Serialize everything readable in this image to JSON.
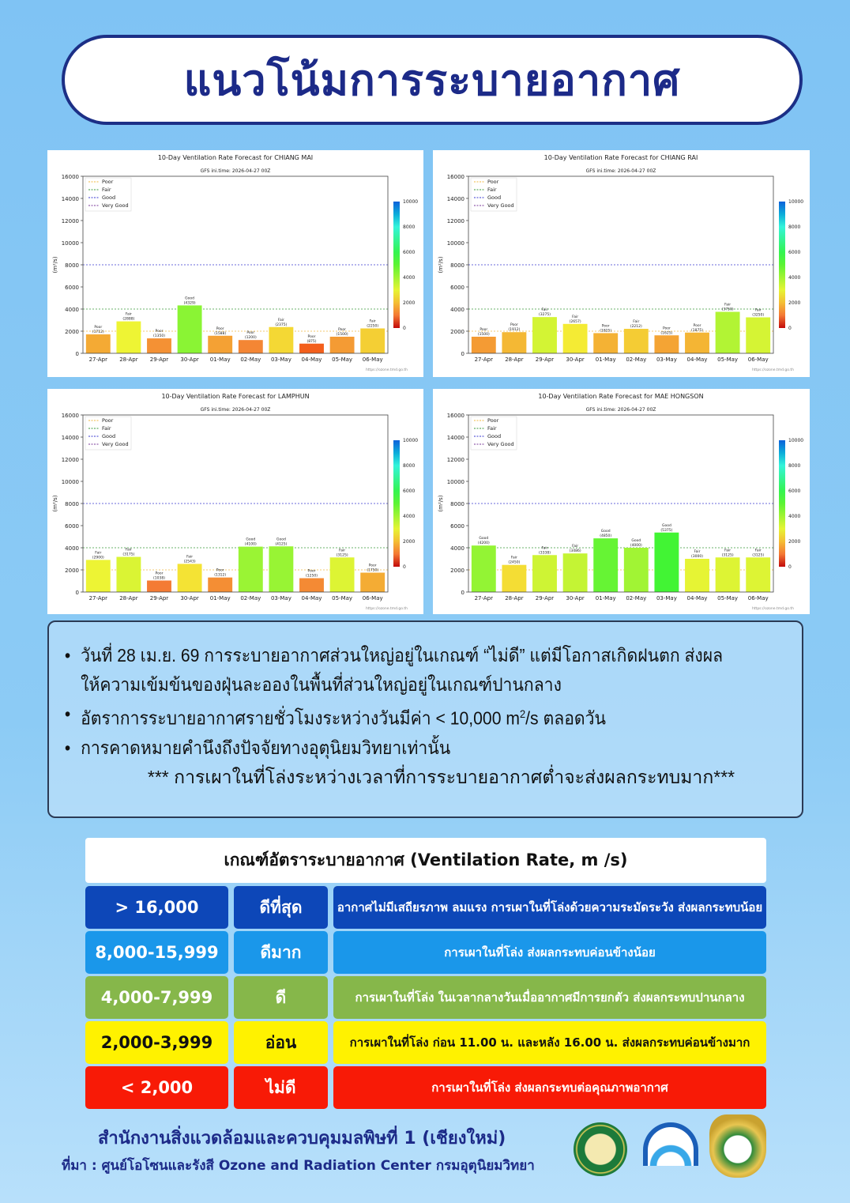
{
  "header": {
    "title": "แนวโน้มการระบายอากาศ"
  },
  "chart_data": [
    {
      "type": "bar",
      "title": "10-Day Ventilation Rate Forecast for CHIANG MAI",
      "subtitle": "GFS ini.time: 2026-04-27 00Z",
      "ylabel": "(m²/s)",
      "ylim": [
        0,
        16000
      ],
      "yticks": [
        0,
        2000,
        4000,
        6000,
        8000,
        10000,
        12000,
        14000,
        16000
      ],
      "categories": [
        "27-Apr",
        "28-Apr",
        "29-Apr",
        "30-Apr",
        "01-May",
        "02-May",
        "03-May",
        "04-May",
        "05-May",
        "06-May"
      ],
      "values": [
        1712,
        2888,
        1350,
        4329,
        1588,
        1200,
        2375,
        875,
        1500,
        2250
      ],
      "labels": [
        "Poor",
        "Fair",
        "Poor",
        "Good",
        "Poor",
        "Poor",
        "Fair",
        "Poor",
        "Poor",
        "Fair"
      ],
      "credit": "https://ozone.tmd.go.th"
    },
    {
      "type": "bar",
      "title": "10-Day Ventilation Rate Forecast for CHIANG RAI",
      "subtitle": "GFS ini.time: 2026-04-27 00Z",
      "ylabel": "(m²/s)",
      "ylim": [
        0,
        16000
      ],
      "yticks": [
        0,
        2000,
        4000,
        6000,
        8000,
        10000,
        12000,
        14000,
        16000
      ],
      "categories": [
        "27-Apr",
        "28-Apr",
        "29-Apr",
        "30-Apr",
        "01-May",
        "02-May",
        "03-May",
        "04-May",
        "05-May",
        "06-May"
      ],
      "values": [
        1500,
        1912,
        3275,
        2657,
        1825,
        2212,
        1625,
        1875,
        3750,
        3250
      ],
      "labels": [
        "Poor",
        "Poor",
        "Fair",
        "Fair",
        "Poor",
        "Fair",
        "Poor",
        "Poor",
        "Fair",
        "Fair"
      ],
      "credit": "https://ozone.tmd.go.th"
    },
    {
      "type": "bar",
      "title": "10-Day Ventilation Rate Forecast for LAMPHUN",
      "subtitle": "GFS ini.time: 2026-04-27 00Z",
      "ylabel": "(m²/s)",
      "ylim": [
        0,
        16000
      ],
      "yticks": [
        0,
        2000,
        4000,
        6000,
        8000,
        10000,
        12000,
        14000,
        16000
      ],
      "categories": [
        "27-Apr",
        "28-Apr",
        "29-Apr",
        "30-Apr",
        "01-May",
        "02-May",
        "03-May",
        "04-May",
        "05-May",
        "06-May"
      ],
      "values": [
        2900,
        3175,
        1038,
        2543,
        1312,
        4100,
        4125,
        1250,
        3125,
        1750
      ],
      "labels": [
        "Fair",
        "Fair",
        "Poor",
        "Fair",
        "Poor",
        "Good",
        "Good",
        "Poor",
        "Fair",
        "Poor"
      ],
      "credit": "https://ozone.tmd.go.th"
    },
    {
      "type": "bar",
      "title": "10-Day Ventilation Rate Forecast for MAE HONGSON",
      "subtitle": "GFS ini.time: 2026-04-27 00Z",
      "ylabel": "(m²/s)",
      "ylim": [
        0,
        16000
      ],
      "yticks": [
        0,
        2000,
        4000,
        6000,
        8000,
        10000,
        12000,
        14000,
        16000
      ],
      "categories": [
        "27-Apr",
        "28-Apr",
        "29-Apr",
        "30-Apr",
        "01-May",
        "02-May",
        "03-May",
        "04-May",
        "05-May",
        "06-May"
      ],
      "values": [
        4200,
        2450,
        3338,
        3486,
        4850,
        4000,
        5375,
        3000,
        3125,
        3125
      ],
      "labels": [
        "Good",
        "Fair",
        "Fair",
        "Fair",
        "Good",
        "Good",
        "Good",
        "Fair",
        "Fair",
        "Fair"
      ],
      "credit": "https://ozone.tmd.go.th"
    }
  ],
  "chart_legend": {
    "entries": [
      {
        "name": "Poor",
        "value": 2000,
        "color": "#f0b840"
      },
      {
        "name": "Fair",
        "value": 4000,
        "color": "#3a9a3a"
      },
      {
        "name": "Good",
        "value": 8000,
        "color": "#3a3ad0"
      },
      {
        "name": "Very Good",
        "value": 16000,
        "color": "#7a3a9a"
      }
    ],
    "colorbar": {
      "ticks": [
        0,
        2000,
        4000,
        6000,
        8000,
        10000
      ],
      "range": [
        0,
        10000
      ]
    }
  },
  "notes": {
    "items": [
      "วันที่ 28 เม.ย. 69 การระบายอากาศส่วนใหญ่อยู่ในเกณฑ์ “ไม่ดี” แต่มีโอกาสเกิดฝนตก ส่งผลให้ความเข้มข้นของฝุ่นละอองในพื้นที่ส่วนใหญ่อยู่ในเกณฑ์ปานกลาง",
      "อัตราการระบายอากาศรายชั่วโมงระหว่างวันมีค่า < 10,000 m²/s ตลอดวัน",
      "การคาดหมายคำนึงถึงปัจจัยทางอุตุนิยมวิทยาเท่านั้น"
    ],
    "warning": "*** การเผาในที่โล่งระหว่างเวลาที่การระบายอากาศต่ำจะส่งผลกระทบมาก***"
  },
  "criteria": {
    "title": "เกณฑ์อัตราระบายอากาศ (Ventilation Rate, m /s)",
    "rows": [
      {
        "range": "> 16,000",
        "level": "ดีที่สุด",
        "desc": "อากาศไม่มีเสถียรภาพ ลมแรง การเผาในที่โล่งด้วยความระมัดระวัง ส่งผลกระทบน้อย",
        "bg": "#0d47b8",
        "fg": "#ffffff"
      },
      {
        "range": "8,000-15,999",
        "level": "ดีมาก",
        "desc": "การเผาในที่โล่ง ส่งผลกระทบค่อนข้างน้อย",
        "bg": "#1a97ea",
        "fg": "#ffffff"
      },
      {
        "range": "4,000-7,999",
        "level": "ดี",
        "desc": "การเผาในที่โล่ง ในเวลากลางวันเมื่ออากาศมีการยกตัว ส่งผลกระทบปานกลาง",
        "bg": "#86b74a",
        "fg": "#ffffff"
      },
      {
        "range": "2,000-3,999",
        "level": "อ่อน",
        "desc": "การเผาในที่โล่ง ก่อน 11.00 น. และหลัง 16.00 น. ส่งผลกระทบค่อนข้างมาก",
        "bg": "#fff200",
        "fg": "#111111"
      },
      {
        "range": "< 2,000",
        "level": "ไม่ดี",
        "desc": "การเผาในที่โล่ง ส่งผลกระทบต่อคุณภาพอากาศ",
        "bg": "#f81a06",
        "fg": "#ffffff"
      }
    ]
  },
  "footer": {
    "office": "สำนักงานสิ่งแวดล้อมและควบคุมมลพิษที่ 1 (เชียงใหม่)",
    "source": "ที่มา : ศูนย์โอโซนและรังสี Ozone and Radiation Center กรมอุตุนิยมวิทยา",
    "logos": [
      {
        "name": "meteorological-department-logo",
        "text": "METEOROLOGICAL DEPARTMENT"
      },
      {
        "name": "pollution-control-department-logo",
        "text": "กรมควบคุมมลพิษ POLLUTION CONTROL DEPARTMENT"
      },
      {
        "name": "provincial-seal-logo"
      }
    ]
  }
}
